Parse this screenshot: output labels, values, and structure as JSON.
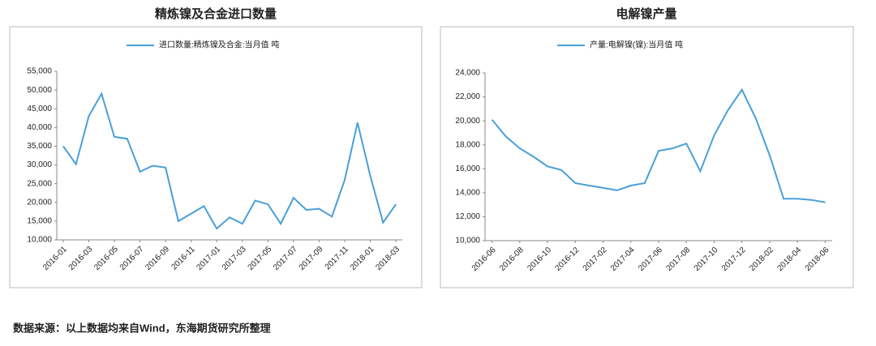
{
  "chart_data": [
    {
      "type": "line",
      "title": "精炼镍及合金进口数量",
      "categories": [
        "2016-01",
        null,
        "2016-03",
        null,
        "2016-05",
        null,
        "2016-07",
        null,
        "2016-09",
        null,
        "2016-11",
        null,
        "2017-01",
        null,
        "2017-03",
        null,
        "2017-05",
        null,
        "2017-07",
        null,
        "2017-09",
        null,
        "2017-11",
        null,
        "2018-01",
        null,
        "2018-03"
      ],
      "series": [
        {
          "name": "进口数量:精炼镍及合金:当月值 吨",
          "color": "#4a9fd8",
          "values": [
            35000,
            30200,
            43000,
            49000,
            37500,
            37000,
            28200,
            29800,
            29300,
            15000,
            17000,
            19000,
            13000,
            16000,
            14300,
            20500,
            19500,
            14300,
            21200,
            18000,
            18300,
            16200,
            26000,
            41300,
            27000,
            14600,
            19500
          ]
        }
      ],
      "ylim": [
        10000,
        55000
      ],
      "yticks": [
        {
          "value": 10000,
          "label": "10,000"
        },
        {
          "value": 15000,
          "label": "15,000"
        },
        {
          "value": 20000,
          "label": "20,000"
        },
        {
          "value": 25000,
          "label": "25,000"
        },
        {
          "value": 30000,
          "label": "30,000"
        },
        {
          "value": 35000,
          "label": "35,000"
        },
        {
          "value": 40000,
          "label": "40,000"
        },
        {
          "value": 45000,
          "label": "45,000"
        },
        {
          "value": 50000,
          "label": "50,000"
        },
        {
          "value": 55000,
          "label": "55,000"
        }
      ],
      "grid": false,
      "legend": "top"
    },
    {
      "type": "line",
      "title": "电解镍产量",
      "categories": [
        "2016-06",
        null,
        "2016-08",
        null,
        "2016-10",
        null,
        "2016-12",
        null,
        "2017-02",
        null,
        "2017-04",
        null,
        "2017-06",
        null,
        "2017-08",
        null,
        "2017-10",
        null,
        "2017-12",
        null,
        "2018-02",
        null,
        "2018-04",
        null,
        "2018-06"
      ],
      "series": [
        {
          "name": "产量:电解镍(镍):当月值 吨",
          "color": "#4a9fd8",
          "values": [
            20100,
            18700,
            17700,
            17000,
            16200,
            15900,
            14800,
            14600,
            14400,
            14200,
            14600,
            14800,
            17500,
            17700,
            18100,
            15800,
            18800,
            20900,
            22600,
            20200,
            17100,
            13500,
            13500,
            13400,
            13200
          ]
        }
      ],
      "ylim": [
        10000,
        24000
      ],
      "yticks": [
        {
          "value": 10000,
          "label": "10,000"
        },
        {
          "value": 12000,
          "label": "12,000"
        },
        {
          "value": 14000,
          "label": "14,000"
        },
        {
          "value": 16000,
          "label": "16,000"
        },
        {
          "value": 18000,
          "label": "18,000"
        },
        {
          "value": 20000,
          "label": "20,000"
        },
        {
          "value": 22000,
          "label": "22,000"
        },
        {
          "value": 24000,
          "label": "24,000"
        }
      ],
      "grid": false,
      "legend": "top"
    }
  ],
  "footer": "数据来源：以上数据均来自Wind，东海期货研究所整理"
}
